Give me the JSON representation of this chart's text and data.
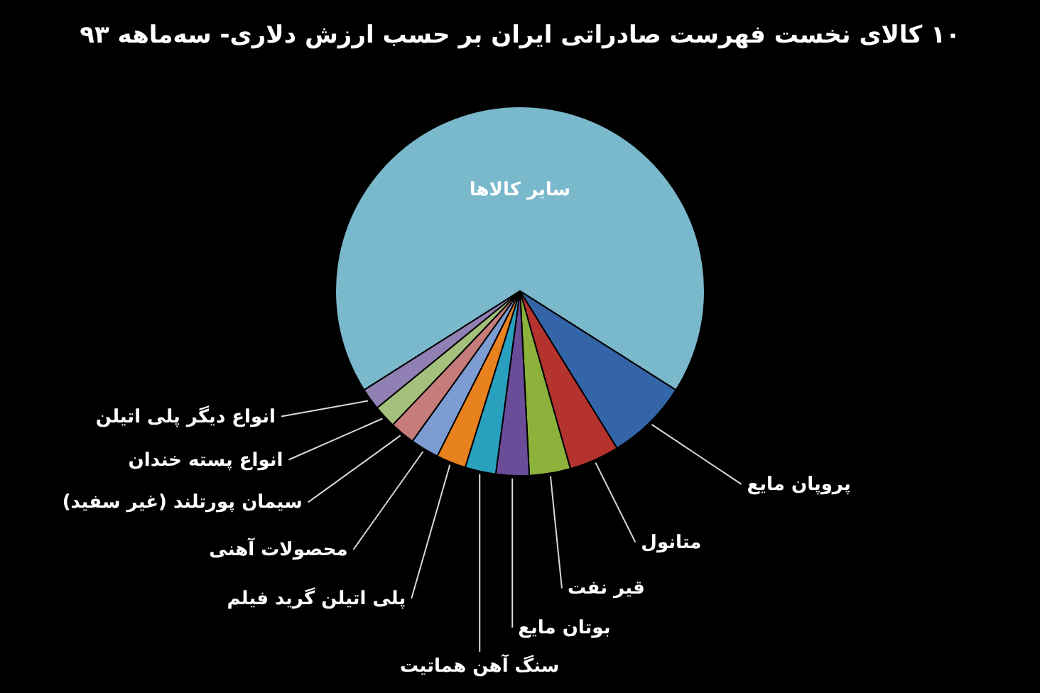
{
  "chart_data": {
    "type": "pie",
    "title": "۱۰ کالای نخست فهرست صادراتی ایران بر حسب ارزش دلاری- سه‌ماهه ۹۳",
    "categories": [
      "سایر کالاها",
      "پروپان مایع",
      "متانول",
      "قیر نفت",
      "بوتان مایع",
      "سنگ آهن هماتیت",
      "پلی اتیلن گرید فیلم",
      "محصولات آهنی",
      "سیمان پورتلند (غیر سفید)",
      "انواع پسته خندان",
      "انواع دیگر پلی اتیلن"
    ],
    "values": [
      68,
      7.2,
      4.4,
      3.6,
      2.9,
      2.7,
      2.6,
      2.5,
      2.2,
      2.0,
      1.9
    ],
    "colors": [
      "#7ab8cc",
      "#3465a8",
      "#b5332e",
      "#8db23c",
      "#6a4c99",
      "#2aa0bf",
      "#e8821e",
      "#7d9cd2",
      "#c57c7a",
      "#a4c07c",
      "#9180b4"
    ]
  }
}
